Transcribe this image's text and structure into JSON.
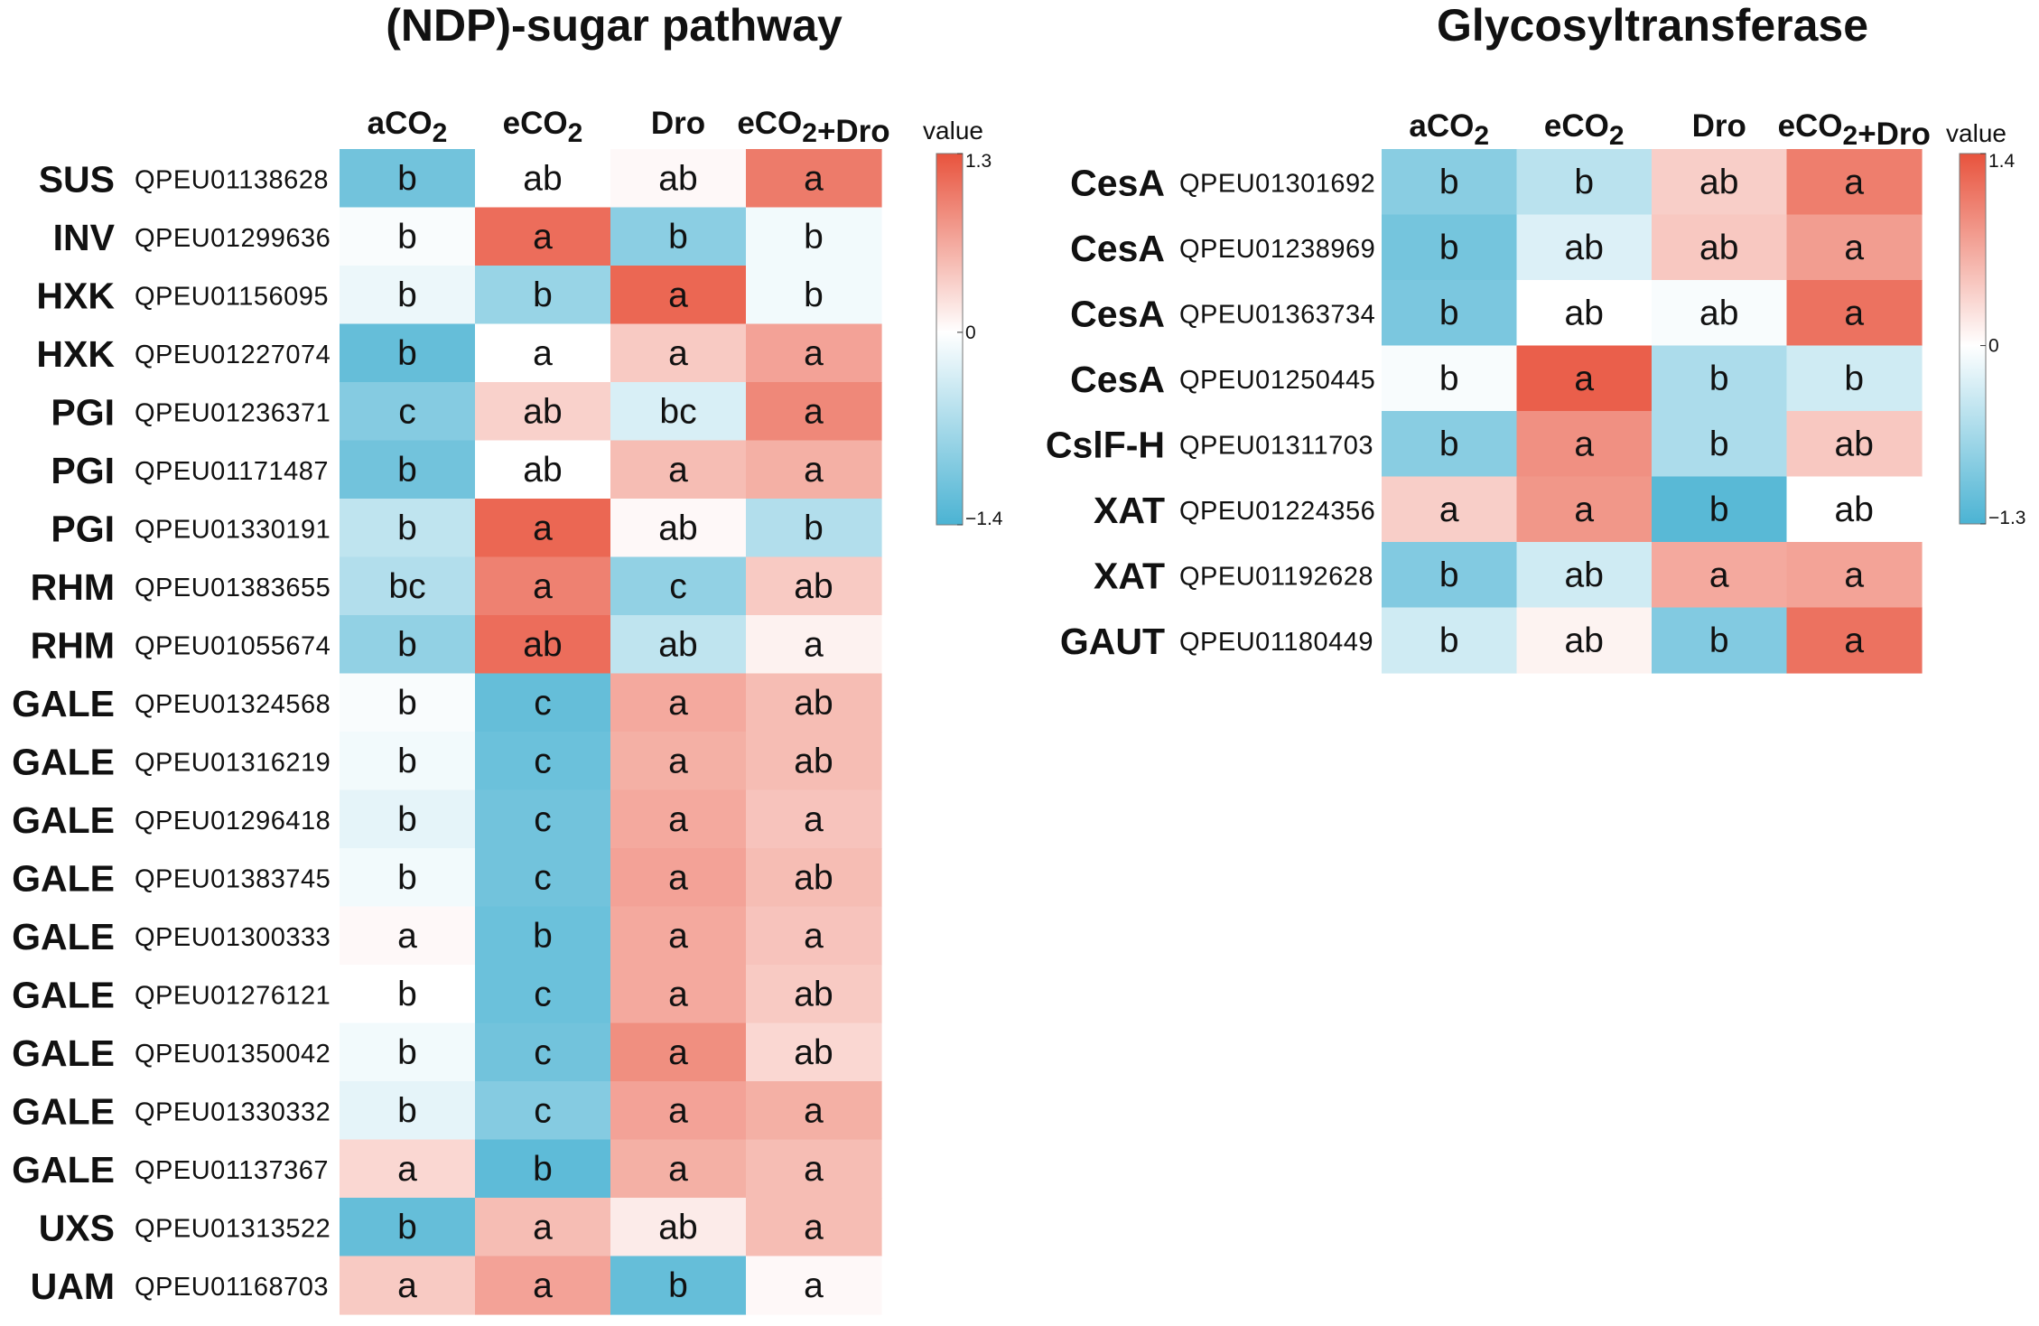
{
  "chart_data": [
    {
      "type": "heatmap",
      "title": "(NDP)-sugar pathway",
      "columns": [
        "aCO2",
        "eCO2",
        "Dro",
        "eCO2+Dro"
      ],
      "legend": {
        "title": "value",
        "max": 1.3,
        "mid": 0,
        "min": -1.4,
        "max_label": "1.3",
        "mid_label": "0",
        "min_label": "−1.4"
      },
      "rows": [
        {
          "gene": "SUS",
          "id": "QPEU01138628",
          "values": [
            -1.1,
            0.0,
            0.05,
            1.0
          ],
          "letters": [
            "b",
            "ab",
            "ab",
            "a"
          ]
        },
        {
          "gene": "INV",
          "id": "QPEU01299636",
          "values": [
            -0.05,
            1.1,
            -0.9,
            -0.1
          ],
          "letters": [
            "b",
            "a",
            "b",
            "b"
          ]
        },
        {
          "gene": "HXK",
          "id": "QPEU01156095",
          "values": [
            -0.15,
            -0.8,
            1.15,
            -0.1
          ],
          "letters": [
            "b",
            "b",
            "a",
            "b"
          ]
        },
        {
          "gene": "HXK",
          "id": "QPEU01227074",
          "values": [
            -1.2,
            0.0,
            0.4,
            0.7
          ],
          "letters": [
            "b",
            "a",
            "a",
            "a"
          ]
        },
        {
          "gene": "PGI",
          "id": "QPEU01236371",
          "values": [
            -0.95,
            0.35,
            -0.3,
            0.9
          ],
          "letters": [
            "c",
            "ab",
            "bc",
            "a"
          ]
        },
        {
          "gene": "PGI",
          "id": "QPEU01171487",
          "values": [
            -1.1,
            0.0,
            0.5,
            0.6
          ],
          "letters": [
            "b",
            "ab",
            "a",
            "a"
          ]
        },
        {
          "gene": "PGI",
          "id": "QPEU01330191",
          "values": [
            -0.5,
            1.15,
            0.05,
            -0.6
          ],
          "letters": [
            "b",
            "a",
            "ab",
            "b"
          ]
        },
        {
          "gene": "RHM",
          "id": "QPEU01383655",
          "values": [
            -0.6,
            0.95,
            -0.85,
            0.4
          ],
          "letters": [
            "bc",
            "a",
            "c",
            "ab"
          ]
        },
        {
          "gene": "RHM",
          "id": "QPEU01055674",
          "values": [
            -0.85,
            1.1,
            -0.5,
            0.1
          ],
          "letters": [
            "b",
            "ab",
            "ab",
            "a"
          ]
        },
        {
          "gene": "GALE",
          "id": "QPEU01324568",
          "values": [
            -0.05,
            -1.2,
            0.65,
            0.5
          ],
          "letters": [
            "b",
            "c",
            "a",
            "ab"
          ]
        },
        {
          "gene": "GALE",
          "id": "QPEU01316219",
          "values": [
            -0.1,
            -1.15,
            0.6,
            0.5
          ],
          "letters": [
            "b",
            "c",
            "a",
            "ab"
          ]
        },
        {
          "gene": "GALE",
          "id": "QPEU01296418",
          "values": [
            -0.2,
            -1.1,
            0.65,
            0.45
          ],
          "letters": [
            "b",
            "c",
            "a",
            "a"
          ]
        },
        {
          "gene": "GALE",
          "id": "QPEU01383745",
          "values": [
            -0.1,
            -1.1,
            0.7,
            0.5
          ],
          "letters": [
            "b",
            "c",
            "a",
            "ab"
          ]
        },
        {
          "gene": "GALE",
          "id": "QPEU01300333",
          "values": [
            0.05,
            -1.15,
            0.65,
            0.45
          ],
          "letters": [
            "a",
            "b",
            "a",
            "a"
          ]
        },
        {
          "gene": "GALE",
          "id": "QPEU01276121",
          "values": [
            0.0,
            -1.15,
            0.65,
            0.4
          ],
          "letters": [
            "b",
            "c",
            "a",
            "ab"
          ]
        },
        {
          "gene": "GALE",
          "id": "QPEU01350042",
          "values": [
            -0.1,
            -1.1,
            0.85,
            0.3
          ],
          "letters": [
            "b",
            "c",
            "a",
            "ab"
          ]
        },
        {
          "gene": "GALE",
          "id": "QPEU01330332",
          "values": [
            -0.2,
            -0.95,
            0.7,
            0.6
          ],
          "letters": [
            "b",
            "c",
            "a",
            "a"
          ]
        },
        {
          "gene": "GALE",
          "id": "QPEU01137367",
          "values": [
            0.3,
            -1.25,
            0.6,
            0.5
          ],
          "letters": [
            "a",
            "b",
            "a",
            "a"
          ]
        },
        {
          "gene": "UXS",
          "id": "QPEU01313522",
          "values": [
            -1.2,
            0.5,
            0.15,
            0.5
          ],
          "letters": [
            "b",
            "a",
            "ab",
            "a"
          ]
        },
        {
          "gene": "UAM",
          "id": "QPEU01168703",
          "values": [
            0.4,
            0.7,
            -1.2,
            0.05
          ],
          "letters": [
            "a",
            "a",
            "b",
            "a"
          ]
        }
      ]
    },
    {
      "type": "heatmap",
      "title": "Glycosyltransferase",
      "columns": [
        "aCO2",
        "eCO2",
        "Dro",
        "eCO2+Dro"
      ],
      "legend": {
        "title": "value",
        "max": 1.4,
        "mid": 0,
        "min": -1.3,
        "max_label": "1.4",
        "mid_label": "0",
        "min_label": "−1.3"
      },
      "rows": [
        {
          "gene": "CesA",
          "id": "QPEU01301692",
          "values": [
            -0.85,
            -0.5,
            0.4,
            1.05
          ],
          "letters": [
            "b",
            "b",
            "ab",
            "a"
          ]
        },
        {
          "gene": "CesA",
          "id": "QPEU01238969",
          "values": [
            -1.0,
            -0.25,
            0.45,
            0.8
          ],
          "letters": [
            "b",
            "ab",
            "ab",
            "a"
          ]
        },
        {
          "gene": "CesA",
          "id": "QPEU01363734",
          "values": [
            -0.95,
            0.0,
            -0.05,
            1.15
          ],
          "letters": [
            "b",
            "ab",
            "ab",
            "a"
          ]
        },
        {
          "gene": "CesA",
          "id": "QPEU01250445",
          "values": [
            -0.05,
            1.3,
            -0.6,
            -0.35
          ],
          "letters": [
            "b",
            "a",
            "b",
            "b"
          ]
        },
        {
          "gene": "CslF-H",
          "id": "QPEU01311703",
          "values": [
            -0.85,
            0.9,
            -0.6,
            0.45
          ],
          "letters": [
            "b",
            "a",
            "b",
            "ab"
          ]
        },
        {
          "gene": "XAT",
          "id": "QPEU01224356",
          "values": [
            0.4,
            0.85,
            -1.2,
            0.0
          ],
          "letters": [
            "a",
            "a",
            "b",
            "ab"
          ]
        },
        {
          "gene": "XAT",
          "id": "QPEU01192628",
          "values": [
            -0.9,
            -0.35,
            0.7,
            0.75
          ],
          "letters": [
            "b",
            "ab",
            "a",
            "a"
          ]
        },
        {
          "gene": "GAUT",
          "id": "QPEU01180449",
          "values": [
            -0.35,
            0.1,
            -0.9,
            1.15
          ],
          "letters": [
            "b",
            "ab",
            "b",
            "a"
          ]
        }
      ]
    }
  ],
  "colors": {
    "low": "#4bb3d3",
    "mid": "#ffffff",
    "high": "#e8533d"
  }
}
